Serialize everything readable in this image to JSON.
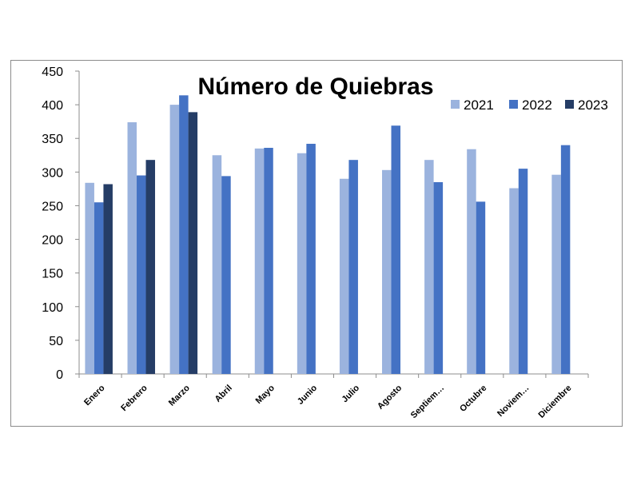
{
  "chart_data": {
    "type": "bar",
    "title": "Número de Quiebras",
    "categories": [
      "Enero",
      "Febrero",
      "Marzo",
      "Abril",
      "Mayo",
      "Junio",
      "Julio",
      "Agosto",
      "Septiem…",
      "Octubre",
      "Noviem…",
      "Diciembre"
    ],
    "series": [
      {
        "name": "2021",
        "color": "#9bb3de",
        "values": [
          284,
          374,
          400,
          325,
          335,
          328,
          290,
          303,
          318,
          334,
          276,
          296
        ]
      },
      {
        "name": "2022",
        "color": "#4472c4",
        "values": [
          255,
          295,
          414,
          294,
          336,
          342,
          318,
          369,
          285,
          256,
          305,
          340
        ]
      },
      {
        "name": "2023",
        "color": "#253d66",
        "values": [
          282,
          318,
          389,
          null,
          null,
          null,
          null,
          null,
          null,
          null,
          null,
          null
        ]
      }
    ],
    "ylim": [
      0,
      450
    ],
    "yticks": [
      0,
      50,
      100,
      150,
      200,
      250,
      300,
      350,
      400,
      450
    ],
    "grid": false,
    "legend_position": "top-right"
  }
}
